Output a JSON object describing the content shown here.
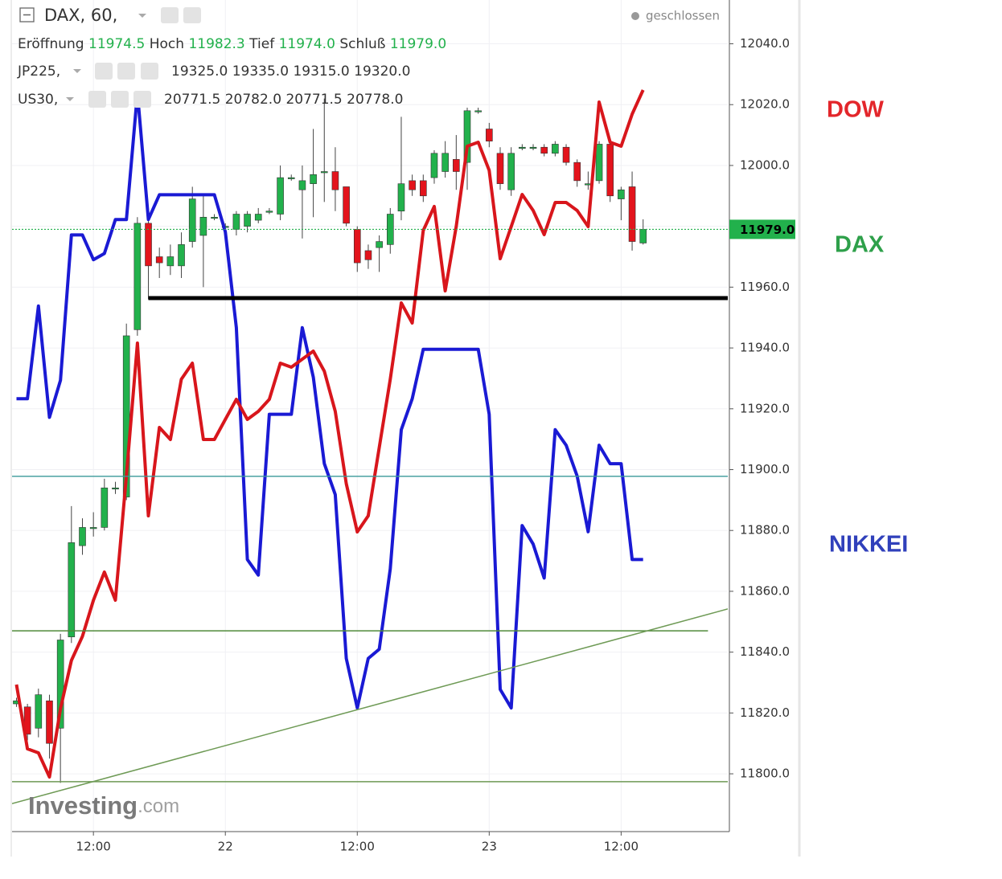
{
  "chart_data": {
    "type": "candlestick",
    "title": "DAX, 60,",
    "status": "geschlossen",
    "watermark": [
      "Investing",
      ".com"
    ],
    "ohlc_labels": [
      "Eröffnung",
      "Hoch",
      "Tief",
      "Schluß"
    ],
    "ohlc_values": [
      "11974.5",
      "11982.3",
      "11974.0",
      "11979.0"
    ],
    "up_color": "#22b14c",
    "down_color": "#e3141c",
    "x": [
      5,
      6,
      7,
      8,
      9,
      10,
      11,
      12,
      13,
      14,
      15,
      16,
      17,
      18,
      19,
      20,
      21,
      22,
      23,
      24,
      25,
      26,
      27,
      28,
      29,
      30,
      31,
      32,
      33,
      34,
      35,
      36,
      37,
      38,
      39,
      40,
      41,
      42,
      43,
      44,
      45,
      46,
      47,
      48,
      49,
      50,
      51,
      52,
      53,
      54,
      55,
      56,
      57,
      58,
      59,
      60,
      61,
      62
    ],
    "open": [
      11823,
      11822,
      11815,
      11824,
      11815,
      11845,
      11875,
      11881,
      11881,
      11894,
      11891,
      11946,
      11981,
      11970,
      11967,
      11967,
      11975,
      11977,
      11983,
      11980,
      11979,
      11980,
      11982,
      11985,
      11984,
      11996,
      11992,
      11994,
      11998,
      11998,
      11993,
      11979,
      11972,
      11973,
      11974,
      11985,
      11995,
      11995,
      11996,
      11998,
      12002,
      12001,
      12018,
      12012,
      12004,
      11992,
      12006,
      12006,
      12006,
      12004,
      12006,
      12001,
      11994,
      11995,
      12007,
      11989,
      11993,
      11974.5
    ],
    "high": [
      11825,
      11823,
      11828,
      11826,
      11846,
      11888,
      11884,
      11886,
      11897,
      11896,
      11948,
      11983,
      11983,
      11973,
      11974,
      11978,
      11993,
      11990,
      11984,
      11981,
      11985,
      11985,
      11986,
      11986,
      12000,
      11997,
      12000,
      12012,
      12022,
      12006,
      11993,
      11980,
      11974,
      11977,
      11986,
      12016,
      11997,
      11997,
      12005,
      12008,
      12010,
      12019,
      12019,
      12014,
      12006,
      12006,
      12007,
      12007,
      12007,
      12008,
      12007,
      12002,
      11998,
      12008,
      12008,
      11993,
      11998,
      11982.3
    ],
    "low": [
      11822,
      11811,
      11812,
      11805,
      11797,
      11843,
      11872,
      11878,
      11880,
      11892,
      11890,
      11944,
      11956,
      11963,
      11964,
      11963,
      11973,
      11960,
      11982,
      11979,
      11977,
      11978,
      11981,
      11984,
      11982,
      11995,
      11976,
      11983,
      11988,
      11985,
      11980,
      11965,
      11966,
      11965,
      11971,
      11982,
      11990,
      11988,
      11994,
      11996,
      11992,
      11992,
      12017,
      12006,
      11992,
      11990,
      12005,
      12005,
      12003,
      12003,
      12000,
      11993,
      11992,
      11994,
      11988,
      11982,
      11972,
      11974
    ],
    "close": [
      11824,
      11813,
      11826,
      11810,
      11844,
      11876,
      11881,
      11881,
      11894,
      11894,
      11944,
      11981,
      11967,
      11968,
      11970,
      11974,
      11989,
      11983,
      11983,
      11980,
      11984,
      11984,
      11984,
      11985,
      11996,
      11996,
      11995,
      11997,
      11998,
      11992,
      11981,
      11968,
      11969,
      11975,
      11984,
      11994,
      11992,
      11990,
      12004,
      12004,
      11998,
      12018,
      12018,
      12008,
      11994,
      12004,
      12006,
      12006,
      12004,
      12007,
      12001,
      11995,
      11994,
      12007,
      11990,
      11992,
      11975,
      11979
    ],
    "overlays": [
      {
        "name": "JP225,",
        "color": "#1a1ad4",
        "ylim": [
          19232,
          19501
        ],
        "ohlc_values": [
          "19325.0",
          "19335.0",
          "19315.0",
          "19320.0"
        ],
        "values": [
          19372,
          19372,
          19402,
          19366,
          19378,
          19425,
          19425,
          19417,
          19419,
          19430,
          19430,
          19471,
          19430,
          19438,
          19438,
          19438,
          19438,
          19438,
          19438,
          19426,
          19395,
          19320,
          19315,
          19367,
          19367,
          19367,
          19395,
          19379,
          19351,
          19341,
          19288,
          19272,
          19288,
          19291,
          19317,
          19362,
          19372,
          19388,
          19388,
          19388,
          19388,
          19388,
          19388,
          19367,
          19278,
          19272,
          19331,
          19325,
          19314,
          19362,
          19357,
          19347,
          19329,
          19357,
          19351,
          19351,
          19320,
          19320
        ]
      },
      {
        "name": "US30,",
        "color": "#d8161c",
        "ylim": [
          20593.4,
          20800.4
        ],
        "ohlc_values": [
          "20771.5",
          "20782.0",
          "20771.5",
          "20778.0"
        ],
        "values": [
          20630,
          20614,
          20613,
          20607,
          20624,
          20636,
          20642,
          20651,
          20658,
          20651,
          20682,
          20715,
          20672,
          20694,
          20691,
          20706,
          20710,
          20691,
          20691,
          20696,
          20701,
          20696,
          20698,
          20701,
          20710,
          20709,
          20711,
          20713,
          20708,
          20698,
          20680,
          20668,
          20672,
          20689,
          20706,
          20725,
          20720,
          20743,
          20749,
          20728,
          20744,
          20764,
          20765,
          20758,
          20736,
          20744,
          20752,
          20748,
          20742,
          20750,
          20750,
          20748,
          20744,
          20775,
          20765,
          20764,
          20772,
          20778
        ]
      }
    ],
    "xlim": [
      4.6,
      69.7
    ],
    "xticks": [
      {
        "value": 12,
        "label": "12:00"
      },
      {
        "value": 24,
        "label": "22"
      },
      {
        "value": 36,
        "label": "12:00"
      },
      {
        "value": 48,
        "label": "23"
      },
      {
        "value": 60,
        "label": "12:00"
      }
    ],
    "ylim": [
      11781,
      12054.4
    ],
    "yticks": [
      {
        "value": 11800,
        "label": "11800.0"
      },
      {
        "value": 11820,
        "label": "11820.0"
      },
      {
        "value": 11840,
        "label": "11840.0"
      },
      {
        "value": 11860,
        "label": "11860.0"
      },
      {
        "value": 11880,
        "label": "11880.0"
      },
      {
        "value": 11900,
        "label": "11900.0"
      },
      {
        "value": 11920,
        "label": "11920.0"
      },
      {
        "value": 11940,
        "label": "11940.0"
      },
      {
        "value": 11960,
        "label": "11960.0"
      },
      {
        "value": 11980,
        "label": "11980.0"
      },
      {
        "value": 12000,
        "label": "12000.0"
      },
      {
        "value": 12020,
        "label": "12020.0"
      },
      {
        "value": 12040,
        "label": "12040.0"
      }
    ],
    "grid": true,
    "last_price": {
      "value": 11979,
      "label": "11979.0",
      "color": "#22b14c"
    },
    "drawings": [
      {
        "x": [
          17,
          69.7
        ],
        "y": [
          11956.4,
          11956.4
        ],
        "color": "#000000",
        "line_width": 5
      },
      {
        "x": [
          4.6,
          69.7
        ],
        "y": [
          11897.8,
          11897.8
        ],
        "color": "#3a9a9a",
        "line_width": 1.3
      },
      {
        "x": [
          4.6,
          67.9
        ],
        "y": [
          11847,
          11847
        ],
        "color": "#4f8a3a",
        "line_width": 1.5
      },
      {
        "x": [
          4.6,
          69.7
        ],
        "y": [
          11797.4,
          11797.4
        ],
        "color": "#6e9a55",
        "line_width": 1.5
      },
      {
        "x": [
          4.6,
          69.7
        ],
        "y": [
          11790.2,
          11854.2
        ],
        "color": "#6e9a55",
        "line_width": 1.5
      }
    ],
    "annotations": [
      {
        "text": "DOW",
        "color": "#e3262b"
      },
      {
        "text": "DAX",
        "color": "#2ea04a"
      },
      {
        "text": "NIKKEI",
        "color": "#3040bb"
      }
    ]
  }
}
